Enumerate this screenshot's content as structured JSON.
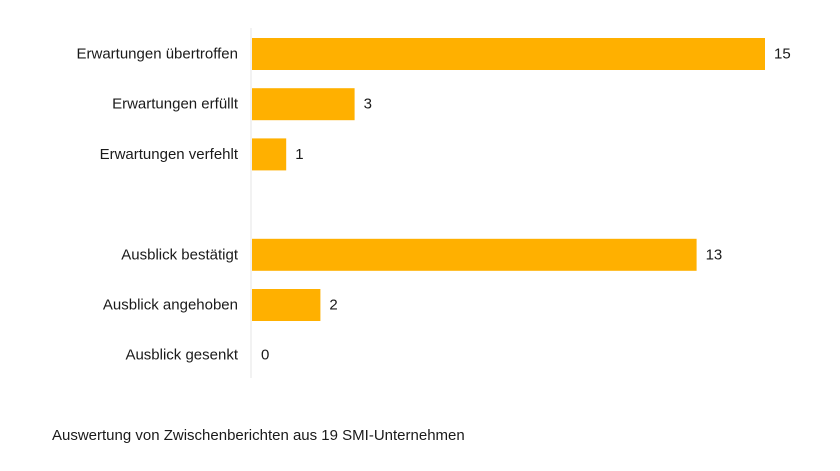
{
  "chart_data": {
    "type": "bar",
    "orientation": "horizontal",
    "categories": [
      "Erwartungen übertroffen",
      "Erwartungen erfüllt",
      "Erwartungen verfehlt",
      "",
      "Ausblick bestätigt",
      "Ausblick angehoben",
      "Ausblick gesenkt"
    ],
    "values": [
      15,
      3,
      1,
      null,
      13,
      2,
      0
    ],
    "xlim": [
      0,
      15
    ],
    "grid": false,
    "bar_color": "#FFB000",
    "axis_color": "#e6e6e6"
  },
  "footnote": "Auswertung von Zwischenberichten aus 19 SMI-Unternehmen"
}
